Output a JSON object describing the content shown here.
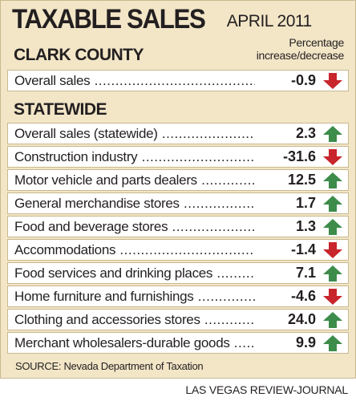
{
  "title": "TAXABLE SALES",
  "date": "APRIL 2011",
  "percent_label_line1": "Percentage",
  "percent_label_line2": "increase/decrease",
  "source": "SOURCE: Nevada Department of Taxation",
  "credit": "LAS VEGAS REVIEW-JOURNAL",
  "colors": {
    "up": "#3d8c4a",
    "down": "#c8252c",
    "background": "#f2e6c7"
  },
  "chart_data": {
    "type": "table",
    "title": "TAXABLE SALES",
    "subtitle": "APRIL 2011",
    "sections": [
      {
        "name": "CLARK COUNTY",
        "rows": [
          {
            "label": "Overall sales",
            "value": "-0.9",
            "direction": "down"
          }
        ]
      },
      {
        "name": "STATEWIDE",
        "rows": [
          {
            "label": "Overall sales (statewide)",
            "value": "2.3",
            "direction": "up"
          },
          {
            "label": "Construction industry",
            "value": "-31.6",
            "direction": "down"
          },
          {
            "label": "Motor vehicle and parts dealers",
            "value": "12.5",
            "direction": "up"
          },
          {
            "label": "General merchandise stores",
            "value": "1.7",
            "direction": "up"
          },
          {
            "label": "Food and beverage stores",
            "value": "1.3",
            "direction": "up"
          },
          {
            "label": "Accommodations",
            "value": "-1.4",
            "direction": "down"
          },
          {
            "label": "Food services and drinking places",
            "value": "7.1",
            "direction": "up"
          },
          {
            "label": "Home furniture and furnishings",
            "value": "-4.6",
            "direction": "down"
          },
          {
            "label": "Clothing and accessories stores",
            "value": "24.0",
            "direction": "up"
          },
          {
            "label": "Merchant wholesalers-durable goods",
            "value": "9.9",
            "direction": "up"
          }
        ]
      }
    ]
  }
}
